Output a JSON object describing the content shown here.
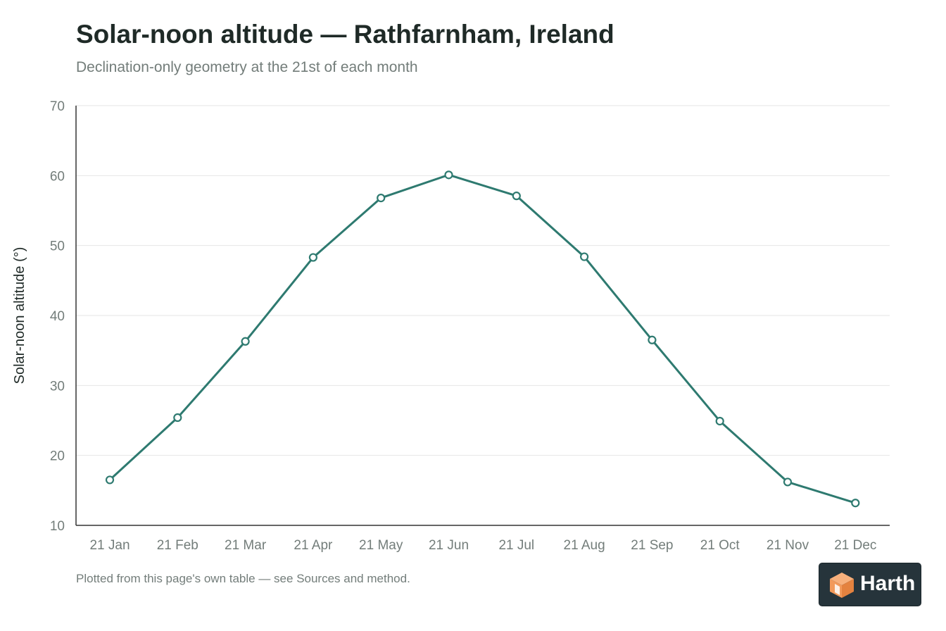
{
  "header": {
    "title": "Solar-noon altitude — Rathfarnham, Ireland",
    "subtitle": "Declination-only geometry at the 21st of each month"
  },
  "footer": {
    "note": "Plotted from this page's own table — see Sources and method."
  },
  "brand": {
    "name": "Harth",
    "logo_icon": "orange-cube-icon",
    "badge_color": "#26343b"
  },
  "colors": {
    "line": "#2e7a70",
    "grid": "#e6e6e6",
    "axis": "#333333",
    "tick_text": "#737d7a"
  },
  "chart_data": {
    "type": "line",
    "categories": [
      "21 Jan",
      "21 Feb",
      "21 Mar",
      "21 Apr",
      "21 May",
      "21 Jun",
      "21 Jul",
      "21 Aug",
      "21 Sep",
      "21 Oct",
      "21 Nov",
      "21 Dec"
    ],
    "series": [
      {
        "values": [
          16.5,
          25.4,
          36.3,
          48.3,
          56.8,
          60.1,
          57.1,
          48.4,
          36.5,
          24.9,
          16.2,
          13.2
        ]
      }
    ],
    "ylabel": "Solar-noon altitude (°)",
    "xlabel": "",
    "ylim": [
      10,
      70
    ],
    "yticks": [
      10,
      20,
      30,
      40,
      50,
      60,
      70
    ],
    "grid": true,
    "markers": "hollow-circle"
  }
}
